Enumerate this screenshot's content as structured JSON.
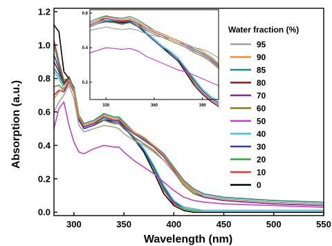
{
  "chart_data": [
    {
      "type": "line",
      "xlabel": "Wavelength (nm)",
      "ylabel": "Absorption (a.u.)",
      "xlim": [
        280,
        550
      ],
      "ylim": [
        -0.02,
        1.22
      ],
      "xticks": [
        300,
        350,
        400,
        450,
        500,
        550
      ],
      "yticks": [
        0.0,
        0.2,
        0.4,
        0.6,
        0.8,
        1.0,
        1.2
      ],
      "xtick_labels": [
        "300",
        "350",
        "400",
        "450",
        "500",
        "550"
      ],
      "ytick_labels": [
        "0.0",
        "0.2",
        "0.4",
        "0.6",
        "0.8",
        "1.0",
        "1.2"
      ],
      "legend": {
        "title": "Water fraction (%)",
        "placement": "right",
        "entries": [
          "95",
          "90",
          "85",
          "80",
          "70",
          "60",
          "50",
          "40",
          "30",
          "20",
          "10",
          "0"
        ]
      },
      "x": [
        280,
        285,
        290,
        295,
        300,
        305,
        310,
        320,
        330,
        340,
        345,
        350,
        360,
        370,
        380,
        390,
        400,
        410,
        420,
        430,
        450,
        500,
        550
      ],
      "series": [
        {
          "name": "95",
          "color": "#a0a0a0",
          "values": [
            0.6,
            0.66,
            0.7,
            0.76,
            0.68,
            0.52,
            0.48,
            0.5,
            0.52,
            0.51,
            0.5,
            0.47,
            0.43,
            0.4,
            0.36,
            0.31,
            0.24,
            0.17,
            0.12,
            0.1,
            0.08,
            0.06,
            0.05
          ]
        },
        {
          "name": "90",
          "color": "#ff8a1e",
          "values": [
            0.68,
            0.72,
            0.74,
            0.79,
            0.73,
            0.57,
            0.52,
            0.54,
            0.58,
            0.56,
            0.56,
            0.53,
            0.48,
            0.45,
            0.4,
            0.34,
            0.26,
            0.18,
            0.13,
            0.1,
            0.08,
            0.06,
            0.05
          ]
        },
        {
          "name": "85",
          "color": "#1b8a8a",
          "values": [
            0.86,
            0.82,
            0.76,
            0.8,
            0.75,
            0.58,
            0.53,
            0.55,
            0.59,
            0.57,
            0.57,
            0.54,
            0.48,
            0.44,
            0.4,
            0.35,
            0.27,
            0.19,
            0.14,
            0.11,
            0.09,
            0.07,
            0.06
          ]
        },
        {
          "name": "80",
          "color": "#8b1a1a",
          "values": [
            0.9,
            0.84,
            0.77,
            0.81,
            0.74,
            0.57,
            0.52,
            0.54,
            0.58,
            0.56,
            0.56,
            0.53,
            0.48,
            0.44,
            0.4,
            0.34,
            0.26,
            0.18,
            0.13,
            0.1,
            0.08,
            0.06,
            0.05
          ]
        },
        {
          "name": "70",
          "color": "#7b2d8e",
          "values": [
            0.7,
            0.73,
            0.72,
            0.78,
            0.72,
            0.56,
            0.51,
            0.53,
            0.57,
            0.55,
            0.55,
            0.52,
            0.47,
            0.43,
            0.39,
            0.33,
            0.25,
            0.17,
            0.12,
            0.09,
            0.07,
            0.05,
            0.04
          ]
        },
        {
          "name": "60",
          "color": "#7d7d1e",
          "values": [
            0.75,
            0.76,
            0.73,
            0.79,
            0.72,
            0.56,
            0.51,
            0.53,
            0.55,
            0.53,
            0.53,
            0.5,
            0.45,
            0.41,
            0.37,
            0.31,
            0.24,
            0.16,
            0.11,
            0.09,
            0.07,
            0.05,
            0.04
          ]
        },
        {
          "name": "50",
          "color": "#c040c0",
          "values": [
            0.5,
            0.62,
            0.66,
            0.52,
            0.42,
            0.36,
            0.35,
            0.38,
            0.4,
            0.39,
            0.39,
            0.36,
            0.31,
            0.27,
            0.23,
            0.18,
            0.13,
            0.09,
            0.07,
            0.06,
            0.05,
            0.04,
            0.03
          ]
        },
        {
          "name": "40",
          "color": "#40c0d8",
          "values": [
            0.84,
            0.8,
            0.74,
            0.78,
            0.73,
            0.56,
            0.51,
            0.53,
            0.56,
            0.55,
            0.55,
            0.52,
            0.45,
            0.38,
            0.28,
            0.16,
            0.07,
            0.03,
            0.02,
            0.01,
            0.01,
            0.01,
            0.01
          ]
        },
        {
          "name": "30",
          "color": "#2a3fb0",
          "values": [
            0.94,
            0.86,
            0.77,
            0.79,
            0.73,
            0.55,
            0.5,
            0.52,
            0.55,
            0.54,
            0.54,
            0.51,
            0.44,
            0.37,
            0.27,
            0.15,
            0.06,
            0.03,
            0.02,
            0.01,
            0.01,
            0.01,
            0.01
          ]
        },
        {
          "name": "20",
          "color": "#2fa83f",
          "values": [
            1.0,
            0.88,
            0.78,
            0.8,
            0.74,
            0.56,
            0.51,
            0.53,
            0.56,
            0.55,
            0.55,
            0.52,
            0.45,
            0.37,
            0.26,
            0.14,
            0.06,
            0.02,
            0.01,
            0.01,
            0.01,
            0.01,
            0.01
          ]
        },
        {
          "name": "10",
          "color": "#e83030",
          "values": [
            1.03,
            0.9,
            0.79,
            0.8,
            0.74,
            0.56,
            0.51,
            0.53,
            0.57,
            0.55,
            0.55,
            0.52,
            0.45,
            0.37,
            0.26,
            0.13,
            0.05,
            0.02,
            0.01,
            0.01,
            0.01,
            0.01,
            0.01
          ]
        },
        {
          "name": "0",
          "color": "#000000",
          "values": [
            1.12,
            1.08,
            0.84,
            0.8,
            0.74,
            0.56,
            0.51,
            0.53,
            0.56,
            0.54,
            0.54,
            0.51,
            0.44,
            0.36,
            0.24,
            0.11,
            0.04,
            0.01,
            0.0,
            0.0,
            0.0,
            0.0,
            0.0
          ]
        }
      ]
    },
    {
      "type": "line",
      "inset": true,
      "xlabel": "",
      "ylabel": "",
      "xlim": [
        320,
        400
      ],
      "ylim": [
        0.1,
        0.62
      ],
      "xticks": [
        330,
        360,
        390
      ],
      "yticks": [
        0.2,
        0.4,
        0.6
      ],
      "xtick_labels": [
        "330",
        "360",
        "390"
      ],
      "ytick_labels": [
        "0.2",
        "0.4",
        "0.6"
      ],
      "x": [
        320,
        325,
        330,
        335,
        340,
        345,
        350,
        355,
        360,
        365,
        370,
        375,
        380,
        385,
        390,
        395,
        400
      ],
      "series": [
        {
          "name": "95",
          "color": "#a0a0a0",
          "values": [
            0.5,
            0.51,
            0.52,
            0.51,
            0.505,
            0.51,
            0.5,
            0.48,
            0.47,
            0.46,
            0.45,
            0.43,
            0.42,
            0.4,
            0.39,
            0.37,
            0.34
          ]
        },
        {
          "name": "90",
          "color": "#ff8a1e",
          "values": [
            0.54,
            0.56,
            0.58,
            0.57,
            0.56,
            0.57,
            0.55,
            0.52,
            0.5,
            0.48,
            0.46,
            0.44,
            0.42,
            0.4,
            0.38,
            0.35,
            0.31
          ]
        },
        {
          "name": "85",
          "color": "#1b8a8a",
          "values": [
            0.55,
            0.57,
            0.585,
            0.575,
            0.57,
            0.58,
            0.56,
            0.53,
            0.5,
            0.48,
            0.46,
            0.44,
            0.42,
            0.39,
            0.37,
            0.34,
            0.3
          ]
        },
        {
          "name": "80",
          "color": "#8b1a1a",
          "values": [
            0.54,
            0.56,
            0.58,
            0.57,
            0.56,
            0.57,
            0.55,
            0.52,
            0.5,
            0.48,
            0.46,
            0.44,
            0.42,
            0.39,
            0.37,
            0.34,
            0.3
          ]
        },
        {
          "name": "70",
          "color": "#7b2d8e",
          "values": [
            0.53,
            0.55,
            0.57,
            0.56,
            0.55,
            0.56,
            0.54,
            0.51,
            0.49,
            0.47,
            0.45,
            0.43,
            0.41,
            0.38,
            0.36,
            0.33,
            0.29
          ]
        },
        {
          "name": "60",
          "color": "#7d7d1e",
          "values": [
            0.52,
            0.54,
            0.555,
            0.545,
            0.535,
            0.545,
            0.53,
            0.5,
            0.48,
            0.46,
            0.44,
            0.42,
            0.4,
            0.37,
            0.35,
            0.32,
            0.28
          ]
        },
        {
          "name": "50",
          "color": "#c040c0",
          "values": [
            0.37,
            0.385,
            0.4,
            0.395,
            0.39,
            0.395,
            0.38,
            0.35,
            0.33,
            0.31,
            0.29,
            0.27,
            0.26,
            0.24,
            0.22,
            0.2,
            0.18
          ]
        },
        {
          "name": "40",
          "color": "#40c0d8",
          "values": [
            0.53,
            0.55,
            0.56,
            0.555,
            0.55,
            0.555,
            0.53,
            0.49,
            0.45,
            0.41,
            0.38,
            0.34,
            0.28,
            0.22,
            0.16,
            0.12,
            0.09
          ]
        },
        {
          "name": "30",
          "color": "#2a3fb0",
          "values": [
            0.52,
            0.54,
            0.55,
            0.545,
            0.54,
            0.545,
            0.52,
            0.48,
            0.44,
            0.4,
            0.37,
            0.33,
            0.27,
            0.21,
            0.15,
            0.11,
            0.08
          ]
        },
        {
          "name": "20",
          "color": "#2fa83f",
          "values": [
            0.53,
            0.55,
            0.56,
            0.555,
            0.55,
            0.555,
            0.53,
            0.49,
            0.45,
            0.41,
            0.37,
            0.33,
            0.27,
            0.2,
            0.15,
            0.11,
            0.08
          ]
        },
        {
          "name": "10",
          "color": "#e83030",
          "values": [
            0.54,
            0.56,
            0.57,
            0.56,
            0.555,
            0.56,
            0.54,
            0.49,
            0.45,
            0.41,
            0.37,
            0.33,
            0.26,
            0.19,
            0.14,
            0.1,
            0.07
          ]
        },
        {
          "name": "0",
          "color": "#000000",
          "values": [
            0.53,
            0.55,
            0.56,
            0.55,
            0.545,
            0.55,
            0.53,
            0.48,
            0.44,
            0.4,
            0.36,
            0.32,
            0.25,
            0.18,
            0.13,
            0.09,
            0.06
          ]
        }
      ]
    }
  ]
}
